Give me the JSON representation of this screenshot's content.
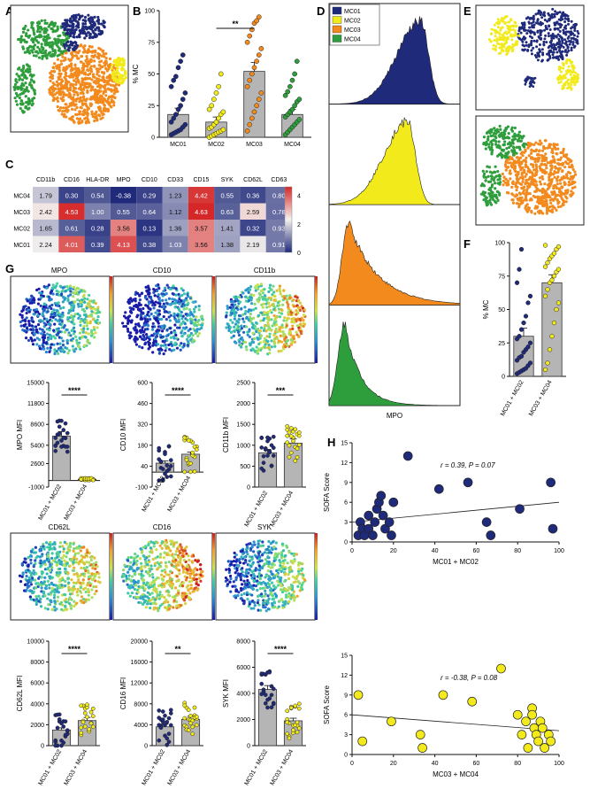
{
  "panels": {
    "A": "A",
    "B": "B",
    "C": "C",
    "D": "D",
    "E": "E",
    "F": "F",
    "G": "G",
    "H": "H"
  },
  "colors": {
    "MC01": "#1f2a7a",
    "MC02": "#f2ea1a",
    "MC03": "#f28a1e",
    "MC04": "#2e9e3c",
    "bar": "#b5b5b5"
  },
  "chart_data": [
    {
      "id": "B",
      "type": "bar",
      "categories": [
        "MC01",
        "MC02",
        "MC03",
        "MC04"
      ],
      "values": [
        18,
        12,
        52,
        18
      ],
      "errors": [
        5,
        4,
        7,
        4
      ],
      "ylabel": "% MC",
      "ylim": [
        0,
        100
      ],
      "yticks": [
        0,
        25,
        50,
        75,
        100
      ],
      "significance": {
        "label": "**",
        "between": [
          "MC02",
          "MC03"
        ]
      },
      "points": [
        [
          2,
          3,
          4,
          5,
          6,
          8,
          10,
          12,
          15,
          18,
          22,
          25,
          30,
          35,
          40,
          45,
          48,
          55,
          60,
          65
        ],
        [
          0,
          1,
          2,
          3,
          4,
          5,
          6,
          7,
          8,
          10,
          12,
          15,
          18,
          20,
          22,
          25,
          30,
          35,
          40,
          50
        ],
        [
          5,
          10,
          15,
          20,
          25,
          30,
          35,
          40,
          45,
          50,
          55,
          60,
          65,
          70,
          75,
          80,
          85,
          90,
          92,
          95
        ],
        [
          2,
          4,
          6,
          8,
          10,
          12,
          14,
          16,
          18,
          20,
          22,
          25,
          28,
          30,
          33,
          36,
          40,
          45,
          50,
          60
        ]
      ]
    },
    {
      "id": "C",
      "type": "heatmap",
      "columns": [
        "CD11b",
        "CD16",
        "HLA-DR",
        "MPO",
        "CD10",
        "CD33",
        "CD15",
        "SYK",
        "CD62L",
        "CD63"
      ],
      "rows": [
        "MC04",
        "MC03",
        "MC02",
        "MC01"
      ],
      "values": [
        [
          1.79,
          0.3,
          0.54,
          -0.38,
          0.29,
          1.23,
          4.42,
          0.55,
          0.36,
          0.8
        ],
        [
          2.42,
          4.53,
          1.0,
          0.55,
          0.64,
          1.12,
          4.63,
          0.63,
          2.59,
          0.78
        ],
        [
          1.65,
          0.61,
          0.28,
          3.56,
          0.13,
          1.36,
          3.57,
          1.41,
          0.32,
          0.93
        ],
        [
          2.24,
          4.01,
          0.39,
          4.13,
          0.38,
          1.03,
          3.56,
          1.38,
          2.19,
          0.91
        ]
      ],
      "colorbar_ticks": [
        0,
        2,
        4
      ],
      "vlim": [
        0,
        4.6
      ]
    },
    {
      "id": "D",
      "type": "area",
      "legend": [
        "MC01",
        "MC02",
        "MC03",
        "MC04"
      ],
      "xlabel": "MPO",
      "peaks": [
        0.7,
        0.6,
        0.15,
        0.12
      ]
    },
    {
      "id": "F",
      "type": "bar",
      "categories": [
        "MC01 + MC02",
        "MC03 + MC04"
      ],
      "values": [
        30,
        70
      ],
      "errors": [
        6,
        6
      ],
      "ylabel": "% MC",
      "ylim": [
        0,
        100
      ],
      "yticks": [
        0,
        25,
        50,
        75,
        100
      ]
    },
    {
      "id": "G-MPO",
      "type": "bar",
      "title": "MPO",
      "categories": [
        "MC01 + MC02",
        "MC03 + MC04"
      ],
      "values": [
        6800,
        200
      ],
      "errors": [
        700,
        100
      ],
      "ylabel": "MPO MFI",
      "ylim": [
        -1000,
        15000
      ],
      "yticks": [
        -1000,
        2600,
        5400,
        8600,
        11800,
        15000
      ],
      "significance": "****"
    },
    {
      "id": "G-CD10",
      "type": "bar",
      "title": "CD10",
      "categories": [
        "MC01 + MC02",
        "MC03 + MC04"
      ],
      "values": [
        60,
        120
      ],
      "errors": [
        15,
        15
      ],
      "ylabel": "CD10 MFI",
      "ylim": [
        -100,
        600
      ],
      "yticks": [
        -100,
        40,
        180,
        320,
        460,
        600
      ],
      "significance": "****"
    },
    {
      "id": "G-CD11b",
      "type": "bar",
      "title": "CD11b",
      "categories": [
        "MC01 + MC02",
        "MC03 + MC04"
      ],
      "values": [
        820,
        1050
      ],
      "errors": [
        80,
        100
      ],
      "ylabel": "CD11b MFI",
      "ylim": [
        0,
        2500
      ],
      "yticks": [
        0,
        500,
        1000,
        1500,
        2000,
        2500
      ],
      "significance": "***"
    },
    {
      "id": "G-CD62L",
      "type": "bar",
      "title": "CD62L",
      "categories": [
        "MC01 + MC02",
        "MC03 + MC04"
      ],
      "values": [
        1500,
        2400
      ],
      "errors": [
        200,
        300
      ],
      "ylabel": "CD62L MFI",
      "ylim": [
        0,
        10000
      ],
      "yticks": [
        0,
        2000,
        4000,
        6000,
        8000,
        10000
      ],
      "significance": "****"
    },
    {
      "id": "G-CD16",
      "type": "bar",
      "title": "CD16",
      "categories": [
        "MC01 + MC02",
        "MC03 + MC04"
      ],
      "values": [
        3600,
        5000
      ],
      "errors": [
        500,
        600
      ],
      "ylabel": "CD16 MFI",
      "ylim": [
        0,
        20000
      ],
      "yticks": [
        0,
        4000,
        8000,
        12000,
        16000,
        20000
      ],
      "significance": "**"
    },
    {
      "id": "G-SYK",
      "type": "bar",
      "title": "SYK",
      "categories": [
        "MC01 + MC02",
        "MC03 + MC04"
      ],
      "values": [
        4300,
        1900
      ],
      "errors": [
        300,
        200
      ],
      "ylabel": "SYK MFI",
      "ylim": [
        0,
        8000
      ],
      "yticks": [
        0,
        2000,
        4000,
        6000,
        8000
      ],
      "significance": "****"
    },
    {
      "id": "H-top",
      "type": "scatter",
      "annotation": "r = 0.39, P = 0.07",
      "xlabel": "MC01 + MC02",
      "ylabel": "SOFA Score",
      "xlim": [
        0,
        100
      ],
      "ylim": [
        0,
        15
      ],
      "xticks": [
        0,
        20,
        40,
        60,
        80,
        100
      ],
      "yticks": [
        0,
        3,
        6,
        9,
        12,
        15
      ],
      "x": [
        3,
        4,
        5,
        6,
        8,
        8,
        10,
        11,
        12,
        13,
        14,
        15,
        16,
        18,
        19,
        20,
        27,
        42,
        56,
        65,
        67,
        81,
        96,
        97
      ],
      "y": [
        1,
        3,
        2,
        1,
        4,
        2,
        1,
        3,
        5,
        6,
        7,
        4,
        2,
        3,
        1,
        6,
        13,
        8,
        9,
        3,
        1,
        5,
        9,
        2
      ],
      "fit": [
        [
          0,
          3.0
        ],
        [
          100,
          6.0
        ]
      ]
    },
    {
      "id": "H-bottom",
      "type": "scatter",
      "annotation": "r = -0.38, P = 0.08",
      "xlabel": "MC03 + MC04",
      "ylabel": "SOFA Score",
      "xlim": [
        0,
        100
      ],
      "ylim": [
        0,
        15
      ],
      "xticks": [
        0,
        20,
        40,
        60,
        80,
        100
      ],
      "yticks": [
        0,
        3,
        6,
        9,
        12,
        15
      ],
      "x": [
        3,
        5,
        19,
        33,
        34,
        44,
        58,
        72,
        80,
        82,
        84,
        85,
        87,
        87,
        88,
        89,
        90,
        91,
        92,
        93,
        95,
        96
      ],
      "y": [
        9,
        2,
        5,
        3,
        1,
        9,
        8,
        13,
        6,
        3,
        5,
        1,
        7,
        6,
        4,
        3,
        2,
        5,
        4,
        1,
        3,
        2
      ],
      "fit": [
        [
          0,
          6.0
        ],
        [
          100,
          3.6
        ]
      ]
    }
  ]
}
